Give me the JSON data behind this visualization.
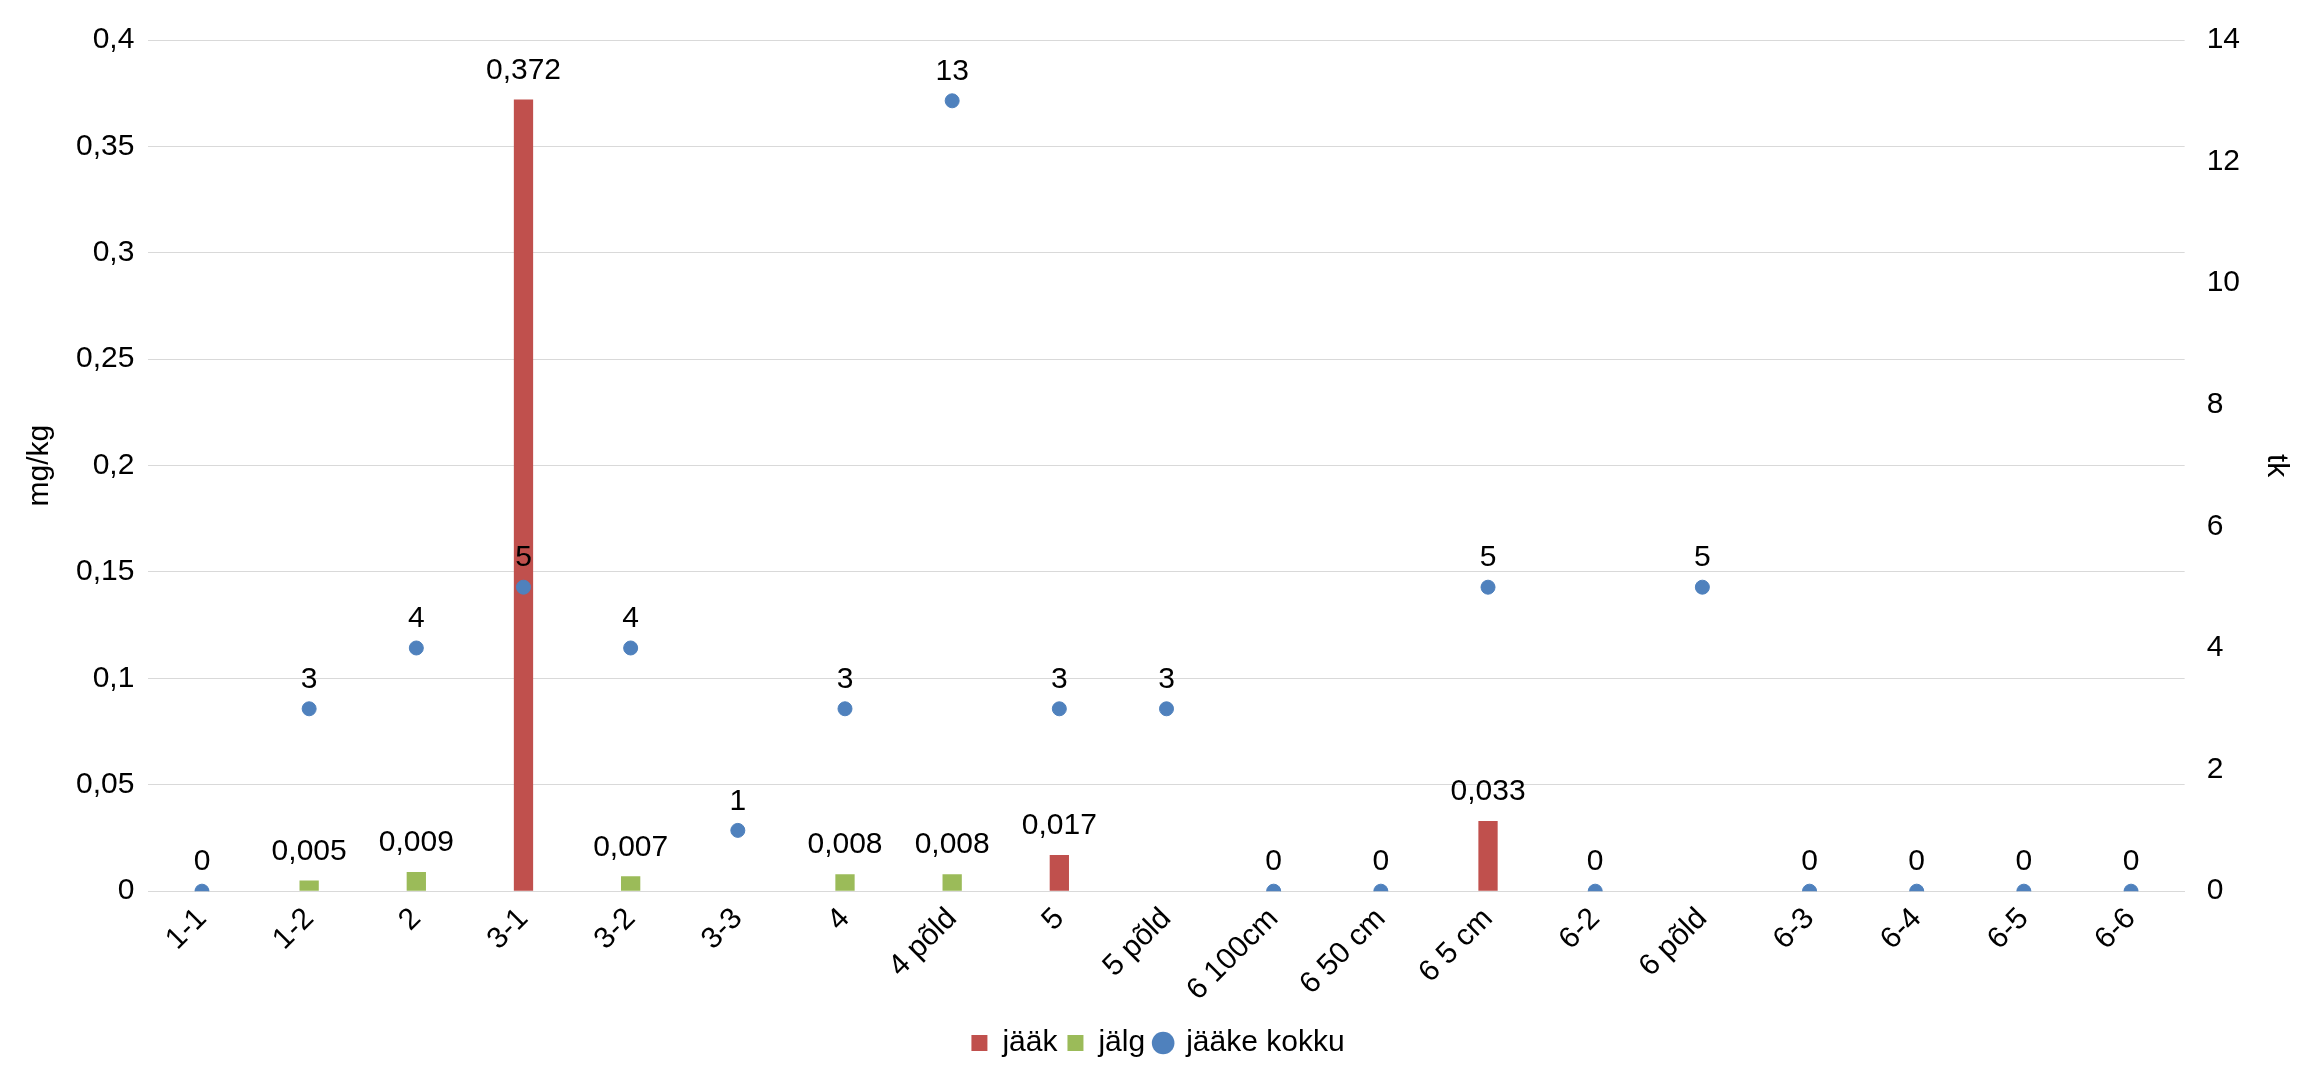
{
  "chart_data": {
    "type": "bar",
    "ylabel": "mg/kg",
    "y2label": "tk",
    "categories": [
      "1-1",
      "1-2",
      "2",
      "3-1",
      "3-2",
      "3-3",
      "4",
      "4 põld",
      "5",
      "5 põld",
      "6 100cm",
      "6 50 cm",
      "6 5 cm",
      "6-2",
      "6 põld",
      "6-3",
      "6-4",
      "6-5",
      "6-6"
    ],
    "series": [
      {
        "name": "jääk",
        "color": "#c0504d",
        "values": [
          null,
          null,
          null,
          0.372,
          null,
          null,
          null,
          null,
          0.017,
          null,
          null,
          null,
          0.033,
          null,
          null,
          null,
          null,
          null,
          null
        ],
        "value_labels": [
          null,
          null,
          null,
          "0,372",
          null,
          null,
          null,
          null,
          "0,017",
          null,
          null,
          null,
          "0,033",
          null,
          null,
          null,
          null,
          null,
          null
        ]
      },
      {
        "name": "jälg",
        "color": "#9bbb59",
        "values": [
          null,
          0.005,
          0.009,
          null,
          0.007,
          null,
          0.008,
          0.008,
          null,
          null,
          null,
          null,
          null,
          null,
          null,
          null,
          null,
          null,
          null
        ],
        "value_labels": [
          null,
          "0,005",
          "0,009",
          null,
          "0,007",
          null,
          "0,008",
          "0,008",
          null,
          null,
          null,
          null,
          null,
          null,
          null,
          null,
          null,
          null,
          null
        ]
      },
      {
        "name": "jääke kokku",
        "type": "scatter",
        "axis": "y2",
        "marker": "circle",
        "color": "#4f81bd",
        "values": [
          0,
          3,
          4,
          5,
          4,
          1,
          3,
          13,
          3,
          3,
          0,
          0,
          5,
          0,
          5,
          0,
          0,
          0,
          0
        ],
        "value_labels": [
          "0",
          "3",
          "4",
          "5",
          "4",
          "1",
          "3",
          "13",
          "3",
          "3",
          "0",
          "0",
          "5",
          "0",
          "5",
          "0",
          "0",
          "0",
          "0"
        ]
      }
    ],
    "ylim": [
      0,
      0.4
    ],
    "yticks": [
      {
        "value": 0,
        "label": "0"
      },
      {
        "value": 0.05,
        "label": "0,05"
      },
      {
        "value": 0.1,
        "label": "0,1"
      },
      {
        "value": 0.15,
        "label": "0,15"
      },
      {
        "value": 0.2,
        "label": "0,2"
      },
      {
        "value": 0.25,
        "label": "0,25"
      },
      {
        "value": 0.3,
        "label": "0,3"
      },
      {
        "value": 0.35,
        "label": "0,35"
      },
      {
        "value": 0.4,
        "label": "0,4"
      }
    ],
    "y2lim": [
      0,
      14
    ],
    "y2ticks": [
      0,
      2,
      4,
      6,
      8,
      10,
      12,
      14
    ],
    "grid": "y",
    "legend": "bottom"
  }
}
